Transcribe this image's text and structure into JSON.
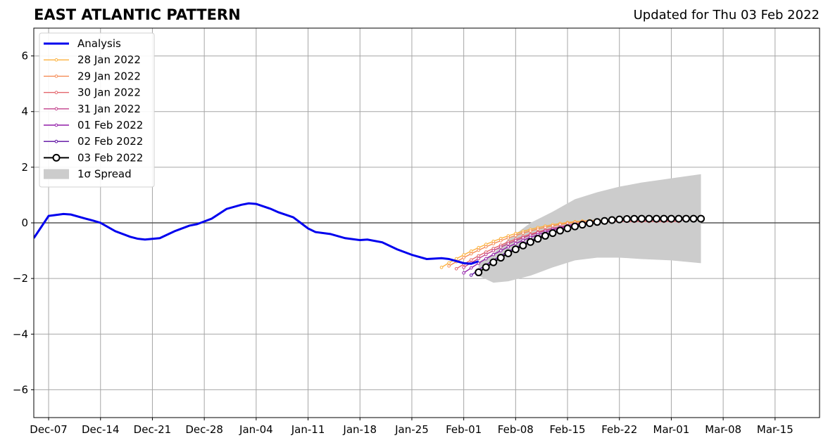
{
  "header": {
    "title": "EAST ATLANTIC PATTERN",
    "subtitle": "Updated for Thu 03 Feb 2022"
  },
  "chart_data": {
    "type": "line",
    "title": "EAST ATLANTIC PATTERN",
    "subtitle": "Updated for Thu 03 Feb 2022",
    "xlabel": "",
    "ylabel": "",
    "x_range": [
      "2021-12-05",
      "2022-03-21"
    ],
    "ylim": [
      -7,
      7
    ],
    "grid": true,
    "legend_position": "top-left",
    "x_ticks": [
      "Dec-07",
      "Dec-14",
      "Dec-21",
      "Dec-28",
      "Jan-04",
      "Jan-11",
      "Jan-18",
      "Jan-25",
      "Feb-01",
      "Feb-08",
      "Feb-15",
      "Feb-22",
      "Mar-01",
      "Mar-08",
      "Mar-15"
    ],
    "y_ticks": [
      "6",
      "4",
      "2",
      "0",
      "−2",
      "−4",
      "−6"
    ],
    "analysis": {
      "name": "Analysis",
      "color": "#0000ee",
      "x": [
        "2021-12-05",
        "2021-12-07",
        "2021-12-09",
        "2021-12-10",
        "2021-12-12",
        "2021-12-13",
        "2021-12-14",
        "2021-12-16",
        "2021-12-18",
        "2021-12-19",
        "2021-12-20",
        "2021-12-22",
        "2021-12-24",
        "2021-12-26",
        "2021-12-27",
        "2021-12-29",
        "2021-12-31",
        "2022-01-02",
        "2022-01-03",
        "2022-01-04",
        "2022-01-06",
        "2022-01-07",
        "2022-01-09",
        "2022-01-10",
        "2022-01-11",
        "2022-01-12",
        "2022-01-14",
        "2022-01-16",
        "2022-01-18",
        "2022-01-19",
        "2022-01-21",
        "2022-01-23",
        "2022-01-25",
        "2022-01-27",
        "2022-01-29",
        "2022-01-30",
        "2022-02-01",
        "2022-02-02",
        "2022-02-03"
      ],
      "values": [
        -0.55,
        0.25,
        0.32,
        0.3,
        0.15,
        0.08,
        0.0,
        -0.3,
        -0.5,
        -0.57,
        -0.6,
        -0.55,
        -0.3,
        -0.1,
        -0.05,
        0.15,
        0.5,
        0.65,
        0.7,
        0.68,
        0.5,
        0.38,
        0.2,
        0.0,
        -0.2,
        -0.33,
        -0.4,
        -0.55,
        -0.62,
        -0.6,
        -0.7,
        -0.95,
        -1.15,
        -1.3,
        -1.27,
        -1.3,
        -1.45,
        -1.47,
        -1.38
      ]
    },
    "forecasts": [
      {
        "name": "28 Jan 2022",
        "color": "#fbb13c",
        "start": "2022-01-29",
        "end": "2022-03-01",
        "v0": -1.6,
        "v_end": 0.1
      },
      {
        "name": "29 Jan 2022",
        "color": "#f58b55",
        "start": "2022-01-30",
        "end": "2022-03-02",
        "v0": -1.55,
        "v_end": 0.1
      },
      {
        "name": "30 Jan 2022",
        "color": "#e3646b",
        "start": "2022-01-31",
        "end": "2022-03-02",
        "v0": -1.65,
        "v_end": 0.05
      },
      {
        "name": "31 Jan 2022",
        "color": "#c2418b",
        "start": "2022-02-01",
        "end": "2022-03-03",
        "v0": -1.6,
        "v_end": 0.1
      },
      {
        "name": "01 Feb 2022",
        "color": "#921da9",
        "start": "2022-02-01",
        "end": "2022-03-04",
        "v0": -1.8,
        "v_end": 0.12
      },
      {
        "name": "02 Feb 2022",
        "color": "#5a0aa0",
        "start": "2022-02-02",
        "end": "2022-03-05",
        "v0": -1.88,
        "v_end": 0.15
      },
      {
        "name": "03 Feb 2022",
        "color": "#000000",
        "start": "2022-02-03",
        "end": "2022-03-05",
        "v0": -1.78,
        "v_end": 0.15
      }
    ],
    "spread": {
      "name": "1σ Spread",
      "color": "#cccccc",
      "x": [
        "2022-02-03",
        "2022-02-05",
        "2022-02-07",
        "2022-02-10",
        "2022-02-13",
        "2022-02-16",
        "2022-02-19",
        "2022-02-22",
        "2022-02-25",
        "2022-03-01",
        "2022-03-05"
      ],
      "upper": [
        -1.4,
        -1.1,
        -0.6,
        0.0,
        0.4,
        0.85,
        1.1,
        1.3,
        1.45,
        1.6,
        1.75
      ],
      "lower": [
        -1.9,
        -2.15,
        -2.1,
        -1.9,
        -1.6,
        -1.35,
        -1.25,
        -1.25,
        -1.3,
        -1.35,
        -1.45
      ]
    }
  }
}
